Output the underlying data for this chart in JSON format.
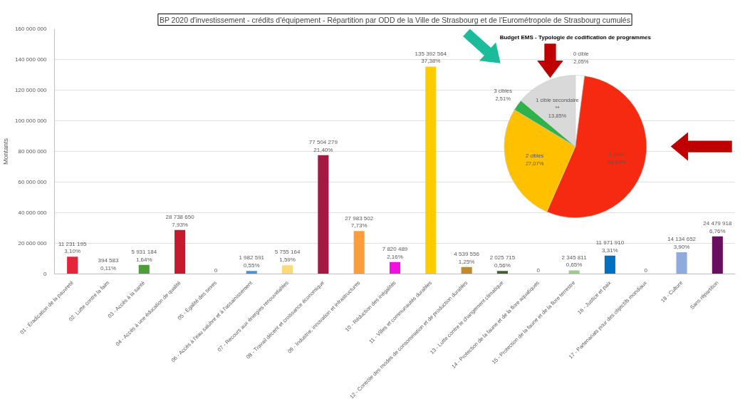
{
  "chart_data": [
    {
      "type": "bar",
      "title": "BP 2020 d'investissement - crédits d'équipement - Répartition par ODD de la Ville de Strasbourg et de l'Eurométropole de Strasbourg cumulés",
      "ylabel": "Montants",
      "categories": [
        "01 - Éradication de la pauvreté",
        "02. Lutte contre la faim",
        "03 - Accès à la santé",
        "04 - Accès à une éducation de qualité",
        "05 - Égalité des sexes",
        "06 - Accès à l'eau salubre et à l'assainissement",
        "07 - Recours aux énergies renouvelables",
        "08 - Travail décent et croissance économique",
        "09 - Industrie, innovation et infrastructures",
        "10 - Réduction des inégalités",
        "11 - Villes et communautés durables",
        "12 - Contrôle des modes de consommation et de production durables",
        "13 - Lutte contre le changement climatique",
        "14 - Protection de la faune et de la flore aquatiques",
        "15 - Protection de la faune et de la flore terrestre",
        "16 - Justice et paix",
        "17 - Partenariats pour des objectifs mondiaux",
        "18 - Culture",
        "Sans répartition"
      ],
      "values": [
        11231195,
        394583,
        5931184,
        28738650,
        0,
        1982591,
        5755164,
        77504279,
        27983502,
        7820489,
        135392564,
        4539556,
        2025715,
        0,
        2345811,
        11971910,
        0,
        14134652,
        24479918
      ],
      "colors": [
        "#e5243b",
        "#dda63a",
        "#4c9f38",
        "#c5192d",
        "#ef402b",
        "#4a90d9",
        "#fcd97a",
        "#a21942",
        "#fd9d3a",
        "#f011e0",
        "#ffcc00",
        "#bf8b2e",
        "#3f5f2e",
        "#0a97d9",
        "#9ccc8c",
        "#0070c0",
        "#19486a",
        "#8faadc",
        "#6a0f5f"
      ],
      "value_labels": [
        "11 231 195\n3,10%",
        "394 583\n0,11%",
        "5 931 184\n1,64%",
        "28 738 650\n7,93%",
        "0",
        "1 982 591\n0,55%",
        "5 755 164\n1,59%",
        "77 504 279\n21,40%",
        "27 983 502\n7,73%",
        "7 820 489\n2,16%",
        "135 392 564\n37,38%",
        "4 539 556\n1,25%",
        "2 025 715\n0,56%",
        "0",
        "2 345 811\n0,65%",
        "11 971 910\n3,31%",
        "0",
        "14 134 652\n3,90%",
        "24 479 918\n6,76%"
      ],
      "ylim": [
        0,
        160000000
      ],
      "yticks": [
        {
          "value": 0,
          "label": "0"
        },
        {
          "value": 20000000,
          "label": "20 000 000"
        },
        {
          "value": 40000000,
          "label": "40 000 000"
        },
        {
          "value": 60000000,
          "label": "60 000 000"
        },
        {
          "value": 80000000,
          "label": "80 000 000"
        },
        {
          "value": 100000000,
          "label": "100 000 000"
        },
        {
          "value": 120000000,
          "label": "120 000 000"
        },
        {
          "value": 140000000,
          "label": "140 000 000"
        },
        {
          "value": 160000000,
          "label": "160 000 000"
        }
      ],
      "grid": "y"
    },
    {
      "type": "pie",
      "title": "Budget EMS - Typologie de codification de programmes",
      "categories": [
        "0 cible",
        "1 cible",
        "2 cibles",
        "3 cibles",
        "1 cible secondaire\n**"
      ],
      "values": [
        2.05,
        54.53,
        27.07,
        2.51,
        13.85
      ],
      "colors": [
        "#ffffff",
        "#f52a10",
        "#ffc000",
        "#2fb24a",
        "#d9d9d9"
      ],
      "value_labels": [
        "2,05%",
        "54,53%",
        "27,07%",
        "2,51%",
        "13,85%"
      ]
    }
  ]
}
